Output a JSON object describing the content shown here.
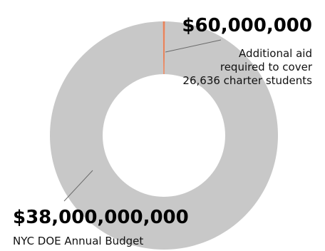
{
  "chart_data": {
    "type": "pie",
    "donut": true,
    "total_display": "",
    "slices": [
      {
        "name": "NYC DOE Annual Budget",
        "value": 38000000000,
        "value_label": "$38,000,000,000",
        "description": "NYC DOE Annual Budget",
        "color": "#c8c8c8"
      },
      {
        "name": "Additional aid required to cover 26,636 charter students",
        "value": 60000000,
        "value_label": "$60,000,000",
        "description_lines": [
          "Additional aid",
          "required to cover",
          "26,636 charter students"
        ],
        "color": "#e8835b"
      }
    ],
    "leader_color": "#6a6a6a"
  }
}
